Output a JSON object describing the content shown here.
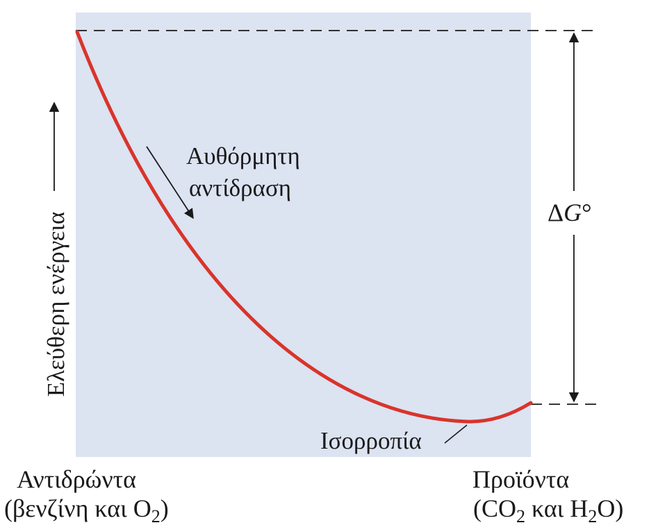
{
  "colors": {
    "panel": "#dce3f1",
    "curve": "#d9342b",
    "ink": "#1a1a1a"
  },
  "labels": {
    "y_axis": "Ελεύθερη ενέργεια",
    "spontaneous_line1": "Αυθόρμητη",
    "spontaneous_line2": "αντίδραση",
    "delta_g_symbol": "Δ",
    "delta_g_var": "G",
    "delta_g_degree": "°",
    "equilibrium": "Ισορροπία",
    "reactants_title": "Αντιδρώντα",
    "reactants_prefix": "(βενζίνη και O",
    "reactants_sub": "2",
    "reactants_suffix": ")",
    "products_title": "Προϊόντα",
    "products_prefix": "(CO",
    "products_sub1": "2",
    "products_mid": " και H",
    "products_sub2": "2",
    "products_suffix": "O)"
  }
}
